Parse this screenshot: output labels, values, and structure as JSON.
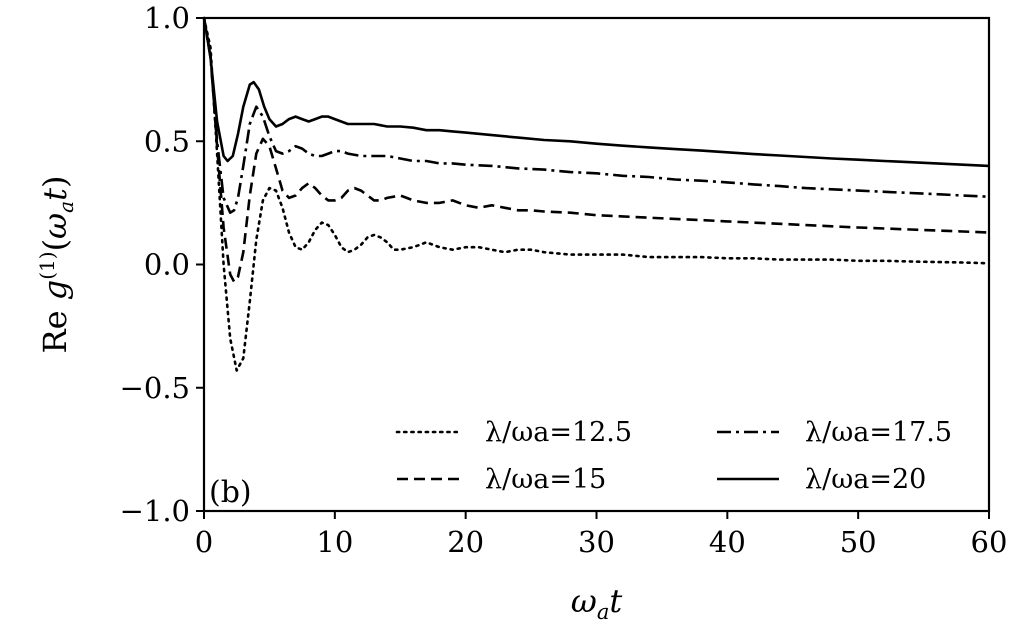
{
  "chart_data": {
    "type": "line",
    "panel_label": "(b)",
    "xlabel": "ωat",
    "ylabel": "Re g(1)(ωat)",
    "xlim": [
      0,
      60
    ],
    "ylim": [
      -1.0,
      1.0
    ],
    "xticks": [
      0,
      10,
      20,
      30,
      40,
      50,
      60
    ],
    "xtick_labels": [
      "0",
      "10",
      "20",
      "30",
      "40",
      "50",
      "60"
    ],
    "yticks": [
      -1.0,
      -0.5,
      0.0,
      0.5,
      1.0
    ],
    "ytick_labels": [
      "−1.0",
      "−0.5",
      "0.0",
      "0.5",
      "1.0"
    ],
    "grid": false,
    "legend_position": "lower right",
    "colors": {
      "line": "#000000",
      "background": "#ffffff"
    },
    "series": [
      {
        "name": "λ/ωa=12.5",
        "linestyle": "dotted",
        "points": [
          [
            0,
            1.0
          ],
          [
            0.5,
            0.88
          ],
          [
            1.0,
            0.45
          ],
          [
            1.5,
            0.0
          ],
          [
            2.0,
            -0.3
          ],
          [
            2.5,
            -0.43
          ],
          [
            3.0,
            -0.38
          ],
          [
            3.5,
            -0.15
          ],
          [
            4.0,
            0.1
          ],
          [
            4.5,
            0.26
          ],
          [
            5.0,
            0.31
          ],
          [
            5.5,
            0.3
          ],
          [
            6.0,
            0.23
          ],
          [
            6.5,
            0.13
          ],
          [
            7.0,
            0.07
          ],
          [
            7.5,
            0.06
          ],
          [
            8.0,
            0.09
          ],
          [
            8.5,
            0.14
          ],
          [
            9.0,
            0.17
          ],
          [
            9.5,
            0.16
          ],
          [
            10.0,
            0.12
          ],
          [
            10.5,
            0.07
          ],
          [
            11.0,
            0.05
          ],
          [
            11.5,
            0.06
          ],
          [
            12.0,
            0.08
          ],
          [
            12.5,
            0.11
          ],
          [
            13.0,
            0.12
          ],
          [
            13.5,
            0.11
          ],
          [
            14.0,
            0.09
          ],
          [
            14.5,
            0.06
          ],
          [
            15.0,
            0.06
          ],
          [
            16.0,
            0.07
          ],
          [
            17.0,
            0.09
          ],
          [
            18.0,
            0.07
          ],
          [
            19.0,
            0.06
          ],
          [
            20.0,
            0.07
          ],
          [
            21.0,
            0.07
          ],
          [
            22.0,
            0.06
          ],
          [
            23.0,
            0.05
          ],
          [
            24.0,
            0.06
          ],
          [
            25.0,
            0.06
          ],
          [
            26.0,
            0.05
          ],
          [
            28.0,
            0.04
          ],
          [
            30.0,
            0.04
          ],
          [
            32.0,
            0.04
          ],
          [
            34.0,
            0.03
          ],
          [
            36.0,
            0.03
          ],
          [
            38.0,
            0.03
          ],
          [
            40.0,
            0.025
          ],
          [
            42.0,
            0.025
          ],
          [
            44.0,
            0.02
          ],
          [
            46.0,
            0.02
          ],
          [
            48.0,
            0.02
          ],
          [
            50.0,
            0.015
          ],
          [
            52.0,
            0.015
          ],
          [
            54.0,
            0.012
          ],
          [
            56.0,
            0.01
          ],
          [
            58.0,
            0.008
          ],
          [
            60.0,
            0.005
          ]
        ]
      },
      {
        "name": "λ/ωa=15",
        "linestyle": "dashed",
        "points": [
          [
            0,
            1.0
          ],
          [
            0.5,
            0.85
          ],
          [
            1.0,
            0.48
          ],
          [
            1.5,
            0.15
          ],
          [
            2.0,
            -0.04
          ],
          [
            2.3,
            -0.07
          ],
          [
            2.6,
            -0.05
          ],
          [
            3.0,
            0.05
          ],
          [
            3.5,
            0.28
          ],
          [
            4.0,
            0.45
          ],
          [
            4.5,
            0.51
          ],
          [
            5.0,
            0.48
          ],
          [
            5.5,
            0.39
          ],
          [
            6.0,
            0.3
          ],
          [
            6.5,
            0.27
          ],
          [
            7.0,
            0.28
          ],
          [
            7.5,
            0.31
          ],
          [
            8.0,
            0.33
          ],
          [
            8.5,
            0.31
          ],
          [
            9.0,
            0.28
          ],
          [
            9.5,
            0.26
          ],
          [
            10.0,
            0.26
          ],
          [
            10.5,
            0.27
          ],
          [
            11.0,
            0.3
          ],
          [
            11.5,
            0.31
          ],
          [
            12.0,
            0.3
          ],
          [
            12.5,
            0.28
          ],
          [
            13.0,
            0.26
          ],
          [
            13.5,
            0.26
          ],
          [
            14.0,
            0.27
          ],
          [
            15.0,
            0.28
          ],
          [
            16.0,
            0.26
          ],
          [
            17.0,
            0.25
          ],
          [
            18.0,
            0.25
          ],
          [
            19.0,
            0.26
          ],
          [
            20.0,
            0.24
          ],
          [
            21.0,
            0.23
          ],
          [
            22.0,
            0.24
          ],
          [
            23.0,
            0.23
          ],
          [
            24.0,
            0.22
          ],
          [
            25.0,
            0.22
          ],
          [
            26.0,
            0.215
          ],
          [
            28.0,
            0.21
          ],
          [
            30.0,
            0.2
          ],
          [
            32.0,
            0.195
          ],
          [
            34.0,
            0.19
          ],
          [
            36.0,
            0.185
          ],
          [
            38.0,
            0.18
          ],
          [
            40.0,
            0.175
          ],
          [
            42.0,
            0.17
          ],
          [
            44.0,
            0.165
          ],
          [
            46.0,
            0.16
          ],
          [
            48.0,
            0.155
          ],
          [
            50.0,
            0.15
          ],
          [
            52.0,
            0.146
          ],
          [
            54.0,
            0.142
          ],
          [
            56.0,
            0.138
          ],
          [
            58.0,
            0.134
          ],
          [
            60.0,
            0.13
          ]
        ]
      },
      {
        "name": "λ/ωa=17.5",
        "linestyle": "dashdot",
        "points": [
          [
            0,
            1.0
          ],
          [
            0.5,
            0.84
          ],
          [
            1.0,
            0.5
          ],
          [
            1.5,
            0.27
          ],
          [
            2.0,
            0.21
          ],
          [
            2.3,
            0.22
          ],
          [
            2.6,
            0.27
          ],
          [
            3.0,
            0.4
          ],
          [
            3.5,
            0.57
          ],
          [
            4.0,
            0.64
          ],
          [
            4.5,
            0.6
          ],
          [
            5.0,
            0.52
          ],
          [
            5.5,
            0.46
          ],
          [
            6.0,
            0.45
          ],
          [
            6.5,
            0.46
          ],
          [
            7.0,
            0.48
          ],
          [
            7.5,
            0.47
          ],
          [
            8.0,
            0.45
          ],
          [
            8.5,
            0.44
          ],
          [
            9.0,
            0.44
          ],
          [
            9.5,
            0.45
          ],
          [
            10.0,
            0.46
          ],
          [
            10.5,
            0.46
          ],
          [
            11.0,
            0.45
          ],
          [
            12.0,
            0.44
          ],
          [
            13.0,
            0.44
          ],
          [
            14.0,
            0.44
          ],
          [
            15.0,
            0.43
          ],
          [
            16.0,
            0.42
          ],
          [
            17.0,
            0.42
          ],
          [
            18.0,
            0.41
          ],
          [
            19.0,
            0.41
          ],
          [
            20.0,
            0.405
          ],
          [
            22.0,
            0.4
          ],
          [
            24.0,
            0.39
          ],
          [
            26.0,
            0.385
          ],
          [
            28.0,
            0.375
          ],
          [
            30.0,
            0.37
          ],
          [
            32.0,
            0.36
          ],
          [
            34.0,
            0.355
          ],
          [
            36.0,
            0.345
          ],
          [
            38.0,
            0.34
          ],
          [
            40.0,
            0.333
          ],
          [
            42.0,
            0.325
          ],
          [
            44.0,
            0.318
          ],
          [
            46.0,
            0.31
          ],
          [
            48.0,
            0.305
          ],
          [
            50.0,
            0.3
          ],
          [
            52.0,
            0.295
          ],
          [
            54.0,
            0.29
          ],
          [
            56.0,
            0.285
          ],
          [
            58.0,
            0.28
          ],
          [
            60.0,
            0.275
          ]
        ]
      },
      {
        "name": "λ/ωa=20",
        "linestyle": "solid",
        "points": [
          [
            0,
            1.0
          ],
          [
            0.5,
            0.84
          ],
          [
            1.0,
            0.58
          ],
          [
            1.5,
            0.44
          ],
          [
            1.8,
            0.42
          ],
          [
            2.2,
            0.44
          ],
          [
            2.6,
            0.53
          ],
          [
            3.0,
            0.64
          ],
          [
            3.5,
            0.73
          ],
          [
            3.8,
            0.74
          ],
          [
            4.2,
            0.71
          ],
          [
            4.6,
            0.64
          ],
          [
            5.0,
            0.59
          ],
          [
            5.5,
            0.56
          ],
          [
            6.0,
            0.57
          ],
          [
            6.5,
            0.59
          ],
          [
            7.0,
            0.6
          ],
          [
            7.5,
            0.59
          ],
          [
            8.0,
            0.58
          ],
          [
            8.5,
            0.59
          ],
          [
            9.0,
            0.6
          ],
          [
            9.5,
            0.6
          ],
          [
            10.0,
            0.59
          ],
          [
            11.0,
            0.57
          ],
          [
            12.0,
            0.57
          ],
          [
            13.0,
            0.57
          ],
          [
            14.0,
            0.56
          ],
          [
            15.0,
            0.56
          ],
          [
            16.0,
            0.555
          ],
          [
            17.0,
            0.545
          ],
          [
            18.0,
            0.545
          ],
          [
            19.0,
            0.54
          ],
          [
            20.0,
            0.535
          ],
          [
            22.0,
            0.525
          ],
          [
            24.0,
            0.515
          ],
          [
            26.0,
            0.505
          ],
          [
            28.0,
            0.5
          ],
          [
            30.0,
            0.49
          ],
          [
            32.0,
            0.482
          ],
          [
            34.0,
            0.475
          ],
          [
            36.0,
            0.468
          ],
          [
            38.0,
            0.462
          ],
          [
            40.0,
            0.455
          ],
          [
            42.0,
            0.448
          ],
          [
            44.0,
            0.442
          ],
          [
            46.0,
            0.436
          ],
          [
            48.0,
            0.43
          ],
          [
            50.0,
            0.425
          ],
          [
            52.0,
            0.42
          ],
          [
            54.0,
            0.415
          ],
          [
            56.0,
            0.41
          ],
          [
            58.0,
            0.405
          ],
          [
            60.0,
            0.4
          ]
        ]
      }
    ]
  }
}
